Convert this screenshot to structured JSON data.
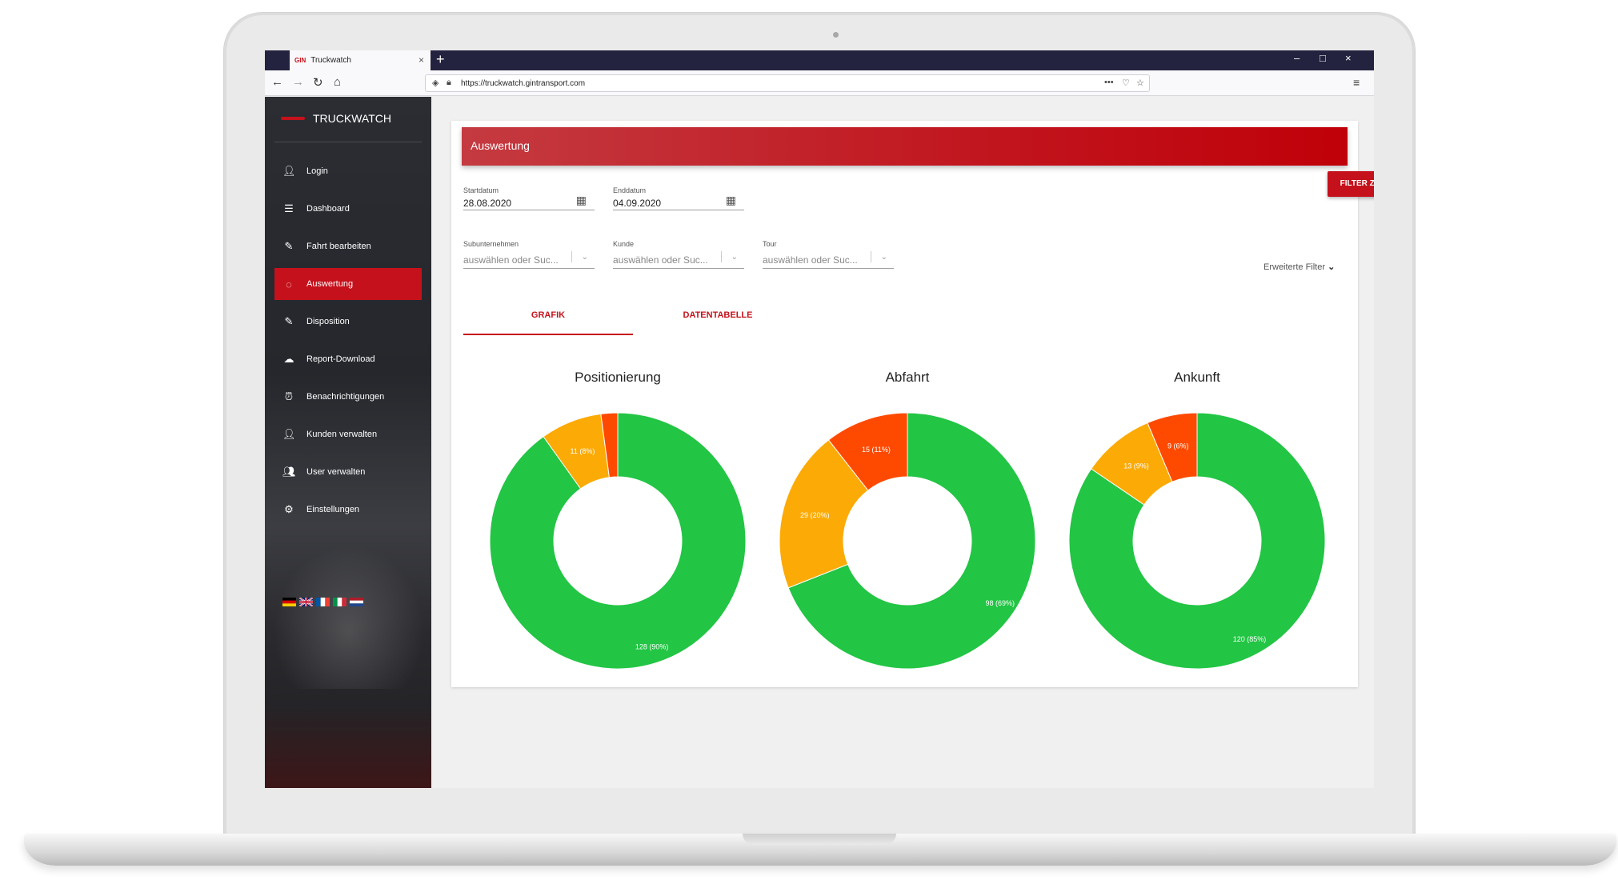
{
  "browser": {
    "tab_title": "Truckwatch",
    "tab_logo": "GIN",
    "url": "https://truckwatch.gintransport.com"
  },
  "sidebar": {
    "brand": "TRUCKWATCH",
    "items": [
      {
        "label": "Login",
        "icon": "person-icon"
      },
      {
        "label": "Dashboard",
        "icon": "list-icon"
      },
      {
        "label": "Fahrt bearbeiten",
        "icon": "pencil-icon"
      },
      {
        "label": "Auswertung",
        "icon": "donut-icon"
      },
      {
        "label": "Disposition",
        "icon": "pencil-icon"
      },
      {
        "label": "Report-Download",
        "icon": "cloud-download-icon"
      },
      {
        "label": "Benachrichtigungen",
        "icon": "alarm-icon"
      },
      {
        "label": "Kunden verwalten",
        "icon": "person-icon"
      },
      {
        "label": "User verwalten",
        "icon": "people-icon"
      },
      {
        "label": "Einstellungen",
        "icon": "gear-icon"
      }
    ],
    "active_index": 3,
    "languages": [
      "de",
      "en",
      "fr",
      "it",
      "nl"
    ]
  },
  "page": {
    "title": "Auswertung",
    "start_label": "Startdatum",
    "start_value": "28.08.2020",
    "end_label": "Enddatum",
    "end_value": "04.09.2020",
    "reset_button": "FILTER ZURÜCKSETZEN",
    "sub_label": "Subunternehmen",
    "kunde_label": "Kunde",
    "tour_label": "Tour",
    "select_placeholder": "auswählen oder Suc...",
    "advanced_filter": "Erweiterte Filter",
    "tab_grafik": "GRAFIK",
    "tab_datentabelle": "DATENTABELLE"
  },
  "colors": {
    "accent": "#c5111b",
    "green": "#22c544",
    "orange": "#fcaa05",
    "red": "#fe4a00"
  },
  "chart_data": [
    {
      "type": "pie",
      "title": "Positionierung",
      "slices": [
        {
          "value": 128,
          "label": "128 (90%)",
          "color": "#22c544"
        },
        {
          "value": 11,
          "label": "11 (8%)",
          "color": "#fcaa05"
        },
        {
          "value": 3,
          "label": "",
          "color": "#fe4a00"
        }
      ]
    },
    {
      "type": "pie",
      "title": "Abfahrt",
      "slices": [
        {
          "value": 98,
          "label": "98 (69%)",
          "color": "#22c544"
        },
        {
          "value": 29,
          "label": "29 (20%)",
          "color": "#fcaa05"
        },
        {
          "value": 15,
          "label": "15 (11%)",
          "color": "#fe4a00"
        }
      ]
    },
    {
      "type": "pie",
      "title": "Ankunft",
      "slices": [
        {
          "value": 120,
          "label": "120 (85%)",
          "color": "#22c544"
        },
        {
          "value": 13,
          "label": "13 (9%)",
          "color": "#fcaa05"
        },
        {
          "value": 9,
          "label": "9 (6%)",
          "color": "#fe4a00"
        }
      ]
    }
  ]
}
